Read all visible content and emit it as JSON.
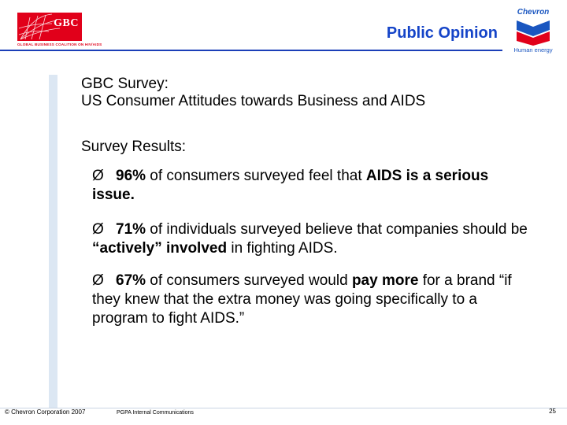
{
  "header": {
    "gbc_logo_text": "GBC",
    "gbc_tagline": "GLOBAL BUSINESS COALITION ON HIV/AIDS",
    "title": "Public Opinion",
    "chevron_wordmark": "Chevron",
    "chevron_tagline": "Human energy"
  },
  "content": {
    "subtitle_line1": "GBC Survey:",
    "subtitle_line2": "US Consumer Attitudes towards Business and AIDS",
    "results_label": "Survey Results:",
    "bullet_symbol": "Ø",
    "bullets": [
      {
        "stat": "96%",
        "text_a": " of consumers surveyed feel that ",
        "bold_a": "AIDS is a serious issue."
      },
      {
        "stat": "71%",
        "text_a": " of individuals surveyed believe that companies should be ",
        "bold_a": "“actively” involved",
        "text_b": " in fighting AIDS."
      },
      {
        "stat": "67%",
        "text_a": " of consumers surveyed would ",
        "bold_a": "pay more",
        "text_b": " for a brand “if they knew that the extra money was going specifically to a program to fight AIDS.”"
      }
    ]
  },
  "footer": {
    "copyright": "© Chevron Corporation 2007",
    "department": "PGPA Internal Communications",
    "page_number": "25"
  },
  "colors": {
    "title_blue": "#1544c8",
    "gbc_red": "#e1001a",
    "stripe": "#dce7f3"
  }
}
